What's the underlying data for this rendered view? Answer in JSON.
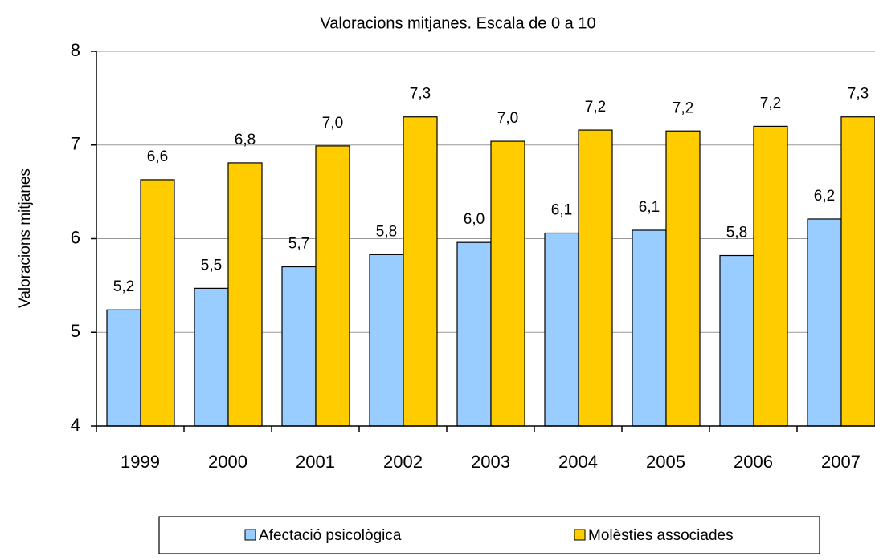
{
  "chart_data": {
    "type": "bar",
    "title": "Valoracions mitjanes. Escala de 0 a 10",
    "y_label": "Valoracions mitjanes",
    "categories": [
      "1999",
      "2000",
      "2001",
      "2002",
      "2003",
      "2004",
      "2005",
      "2006",
      "2007"
    ],
    "series": [
      {
        "name": "Afectació psicològica",
        "color": "#99ccff",
        "values": [
          5.24,
          5.47,
          5.7,
          5.83,
          5.96,
          6.06,
          6.09,
          5.82,
          6.21
        ],
        "value_labels": [
          "5,2",
          "5,5",
          "5,7",
          "5,8",
          "6,0",
          "6,1",
          "6,1",
          "5,8",
          "6,2"
        ]
      },
      {
        "name": "Molèsties associades",
        "color": "#ffcc00",
        "values": [
          6.63,
          6.81,
          6.99,
          7.3,
          7.04,
          7.16,
          7.15,
          7.2,
          7.3
        ],
        "value_labels": [
          "6,6",
          "6,8",
          "7,0",
          "7,3",
          "7,0",
          "7,2",
          "7,2",
          "7,2",
          "7,3"
        ]
      }
    ],
    "ylim": [
      4,
      8
    ],
    "yticks": [
      4,
      5,
      6,
      7,
      8
    ],
    "grid": true,
    "legend": "bottom"
  }
}
